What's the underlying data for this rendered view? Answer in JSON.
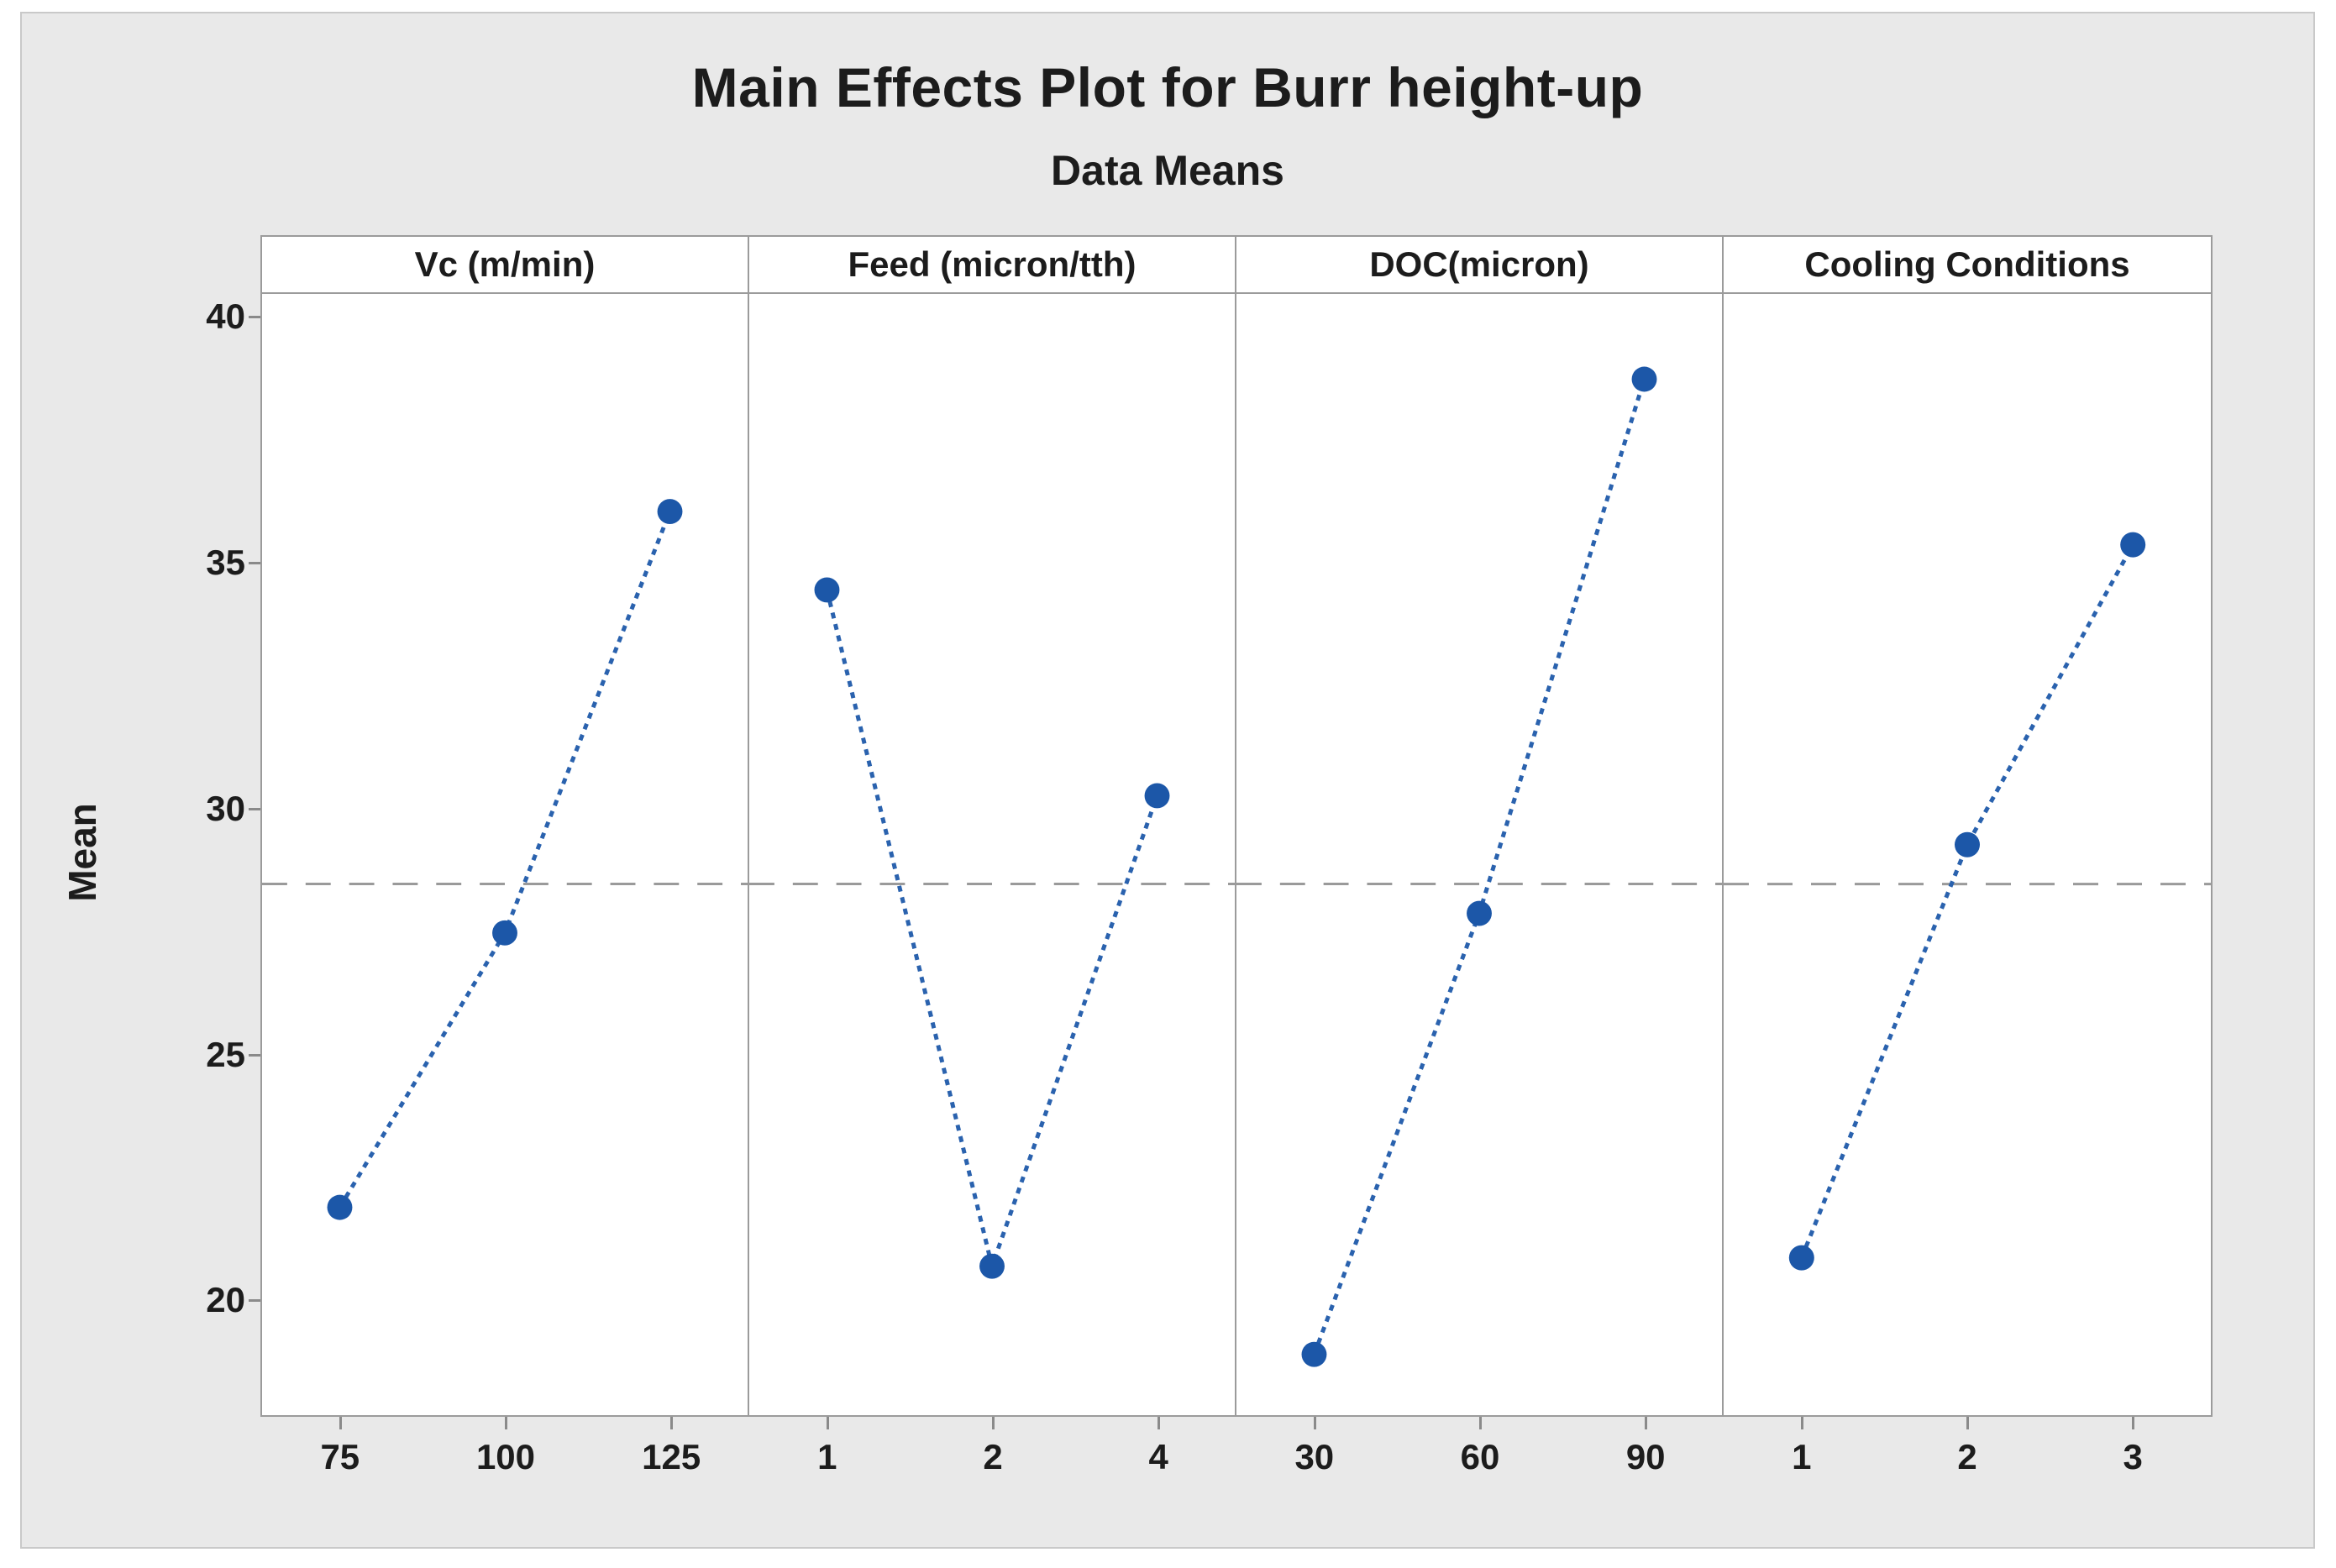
{
  "title": "Main Effects Plot for Burr height-up",
  "subtitle": "Data Means",
  "chart_data": {
    "type": "line",
    "variant": "main-effects-plot",
    "title": "Main Effects Plot for Burr height-up",
    "subtitle": "Data Means",
    "ylabel": "Mean",
    "ylim": [
      17.7,
      40.5
    ],
    "yticks": [
      20,
      25,
      30,
      35,
      40
    ],
    "grand_mean": 28.5,
    "grid": false,
    "legend": "none",
    "reference_line_style": "dashed",
    "series_line_style": "dotted",
    "marker": "filled-circle",
    "panels": [
      {
        "factor": "Vc (m/min)",
        "categories": [
          "75",
          "100",
          "125"
        ],
        "values": [
          21.9,
          27.5,
          36.1
        ]
      },
      {
        "factor": "Feed (micron/tth)",
        "categories": [
          "1",
          "2",
          "4"
        ],
        "values": [
          34.5,
          20.7,
          30.3
        ]
      },
      {
        "factor": "DOC(micron)",
        "categories": [
          "30",
          "60",
          "90"
        ],
        "values": [
          18.9,
          27.9,
          38.8
        ]
      },
      {
        "factor": "Cooling Conditions",
        "categories": [
          "1",
          "2",
          "3"
        ],
        "values": [
          20.9,
          29.3,
          35.4
        ]
      }
    ],
    "colors": {
      "point": "#1c57a8",
      "line": "#2a62ae",
      "reference": "#9a9a9a",
      "panel_bg": "#ffffff",
      "chart_bg": "#e9e9e9",
      "panel_border": "#9b9b9b",
      "text": "#1c1c1c"
    }
  }
}
